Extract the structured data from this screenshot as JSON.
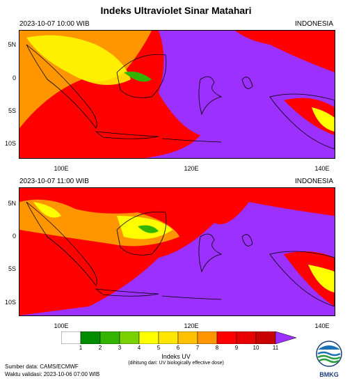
{
  "title": "Indeks Ultraviolet Sinar Matahari",
  "panels": [
    {
      "datetime": "2023-10-07  10:00 WIB",
      "region": "INDONESIA"
    },
    {
      "datetime": "2023-10-07  11:00 WIB",
      "region": "INDONESIA"
    }
  ],
  "lat_ticks": [
    "5N",
    "0",
    "5S",
    "10S"
  ],
  "lon_ticks": [
    "100E",
    "120E",
    "140E"
  ],
  "colorbar": {
    "title": "Indeks UV",
    "note": "(dihitung dari: UV biologically effective dose)",
    "labels": [
      "1",
      "2",
      "3",
      "4",
      "5",
      "6",
      "7",
      "8",
      "9",
      "10",
      "11"
    ],
    "colors": [
      "#ffffff",
      "#008c00",
      "#33b400",
      "#7ad100",
      "#ffff00",
      "#ffe600",
      "#ffc000",
      "#ff9600",
      "#ff0000",
      "#e60000",
      "#c80000",
      "#9b30ff"
    ]
  },
  "map_colors": {
    "low_uv": "#9b30ff",
    "mid": "#ff9600",
    "high": "#ff0000",
    "very_high": "#e60000",
    "yellow": "#ffff00",
    "green": "#33b400",
    "coast": "#000000"
  },
  "footer": {
    "source": "Sumber data: CAMS/ECMWF",
    "validity": "Waktu validasi: 2023-10-06 07:00 WIB"
  },
  "logo": {
    "text": "BMKG",
    "icon": "bmkg-logo-icon"
  }
}
